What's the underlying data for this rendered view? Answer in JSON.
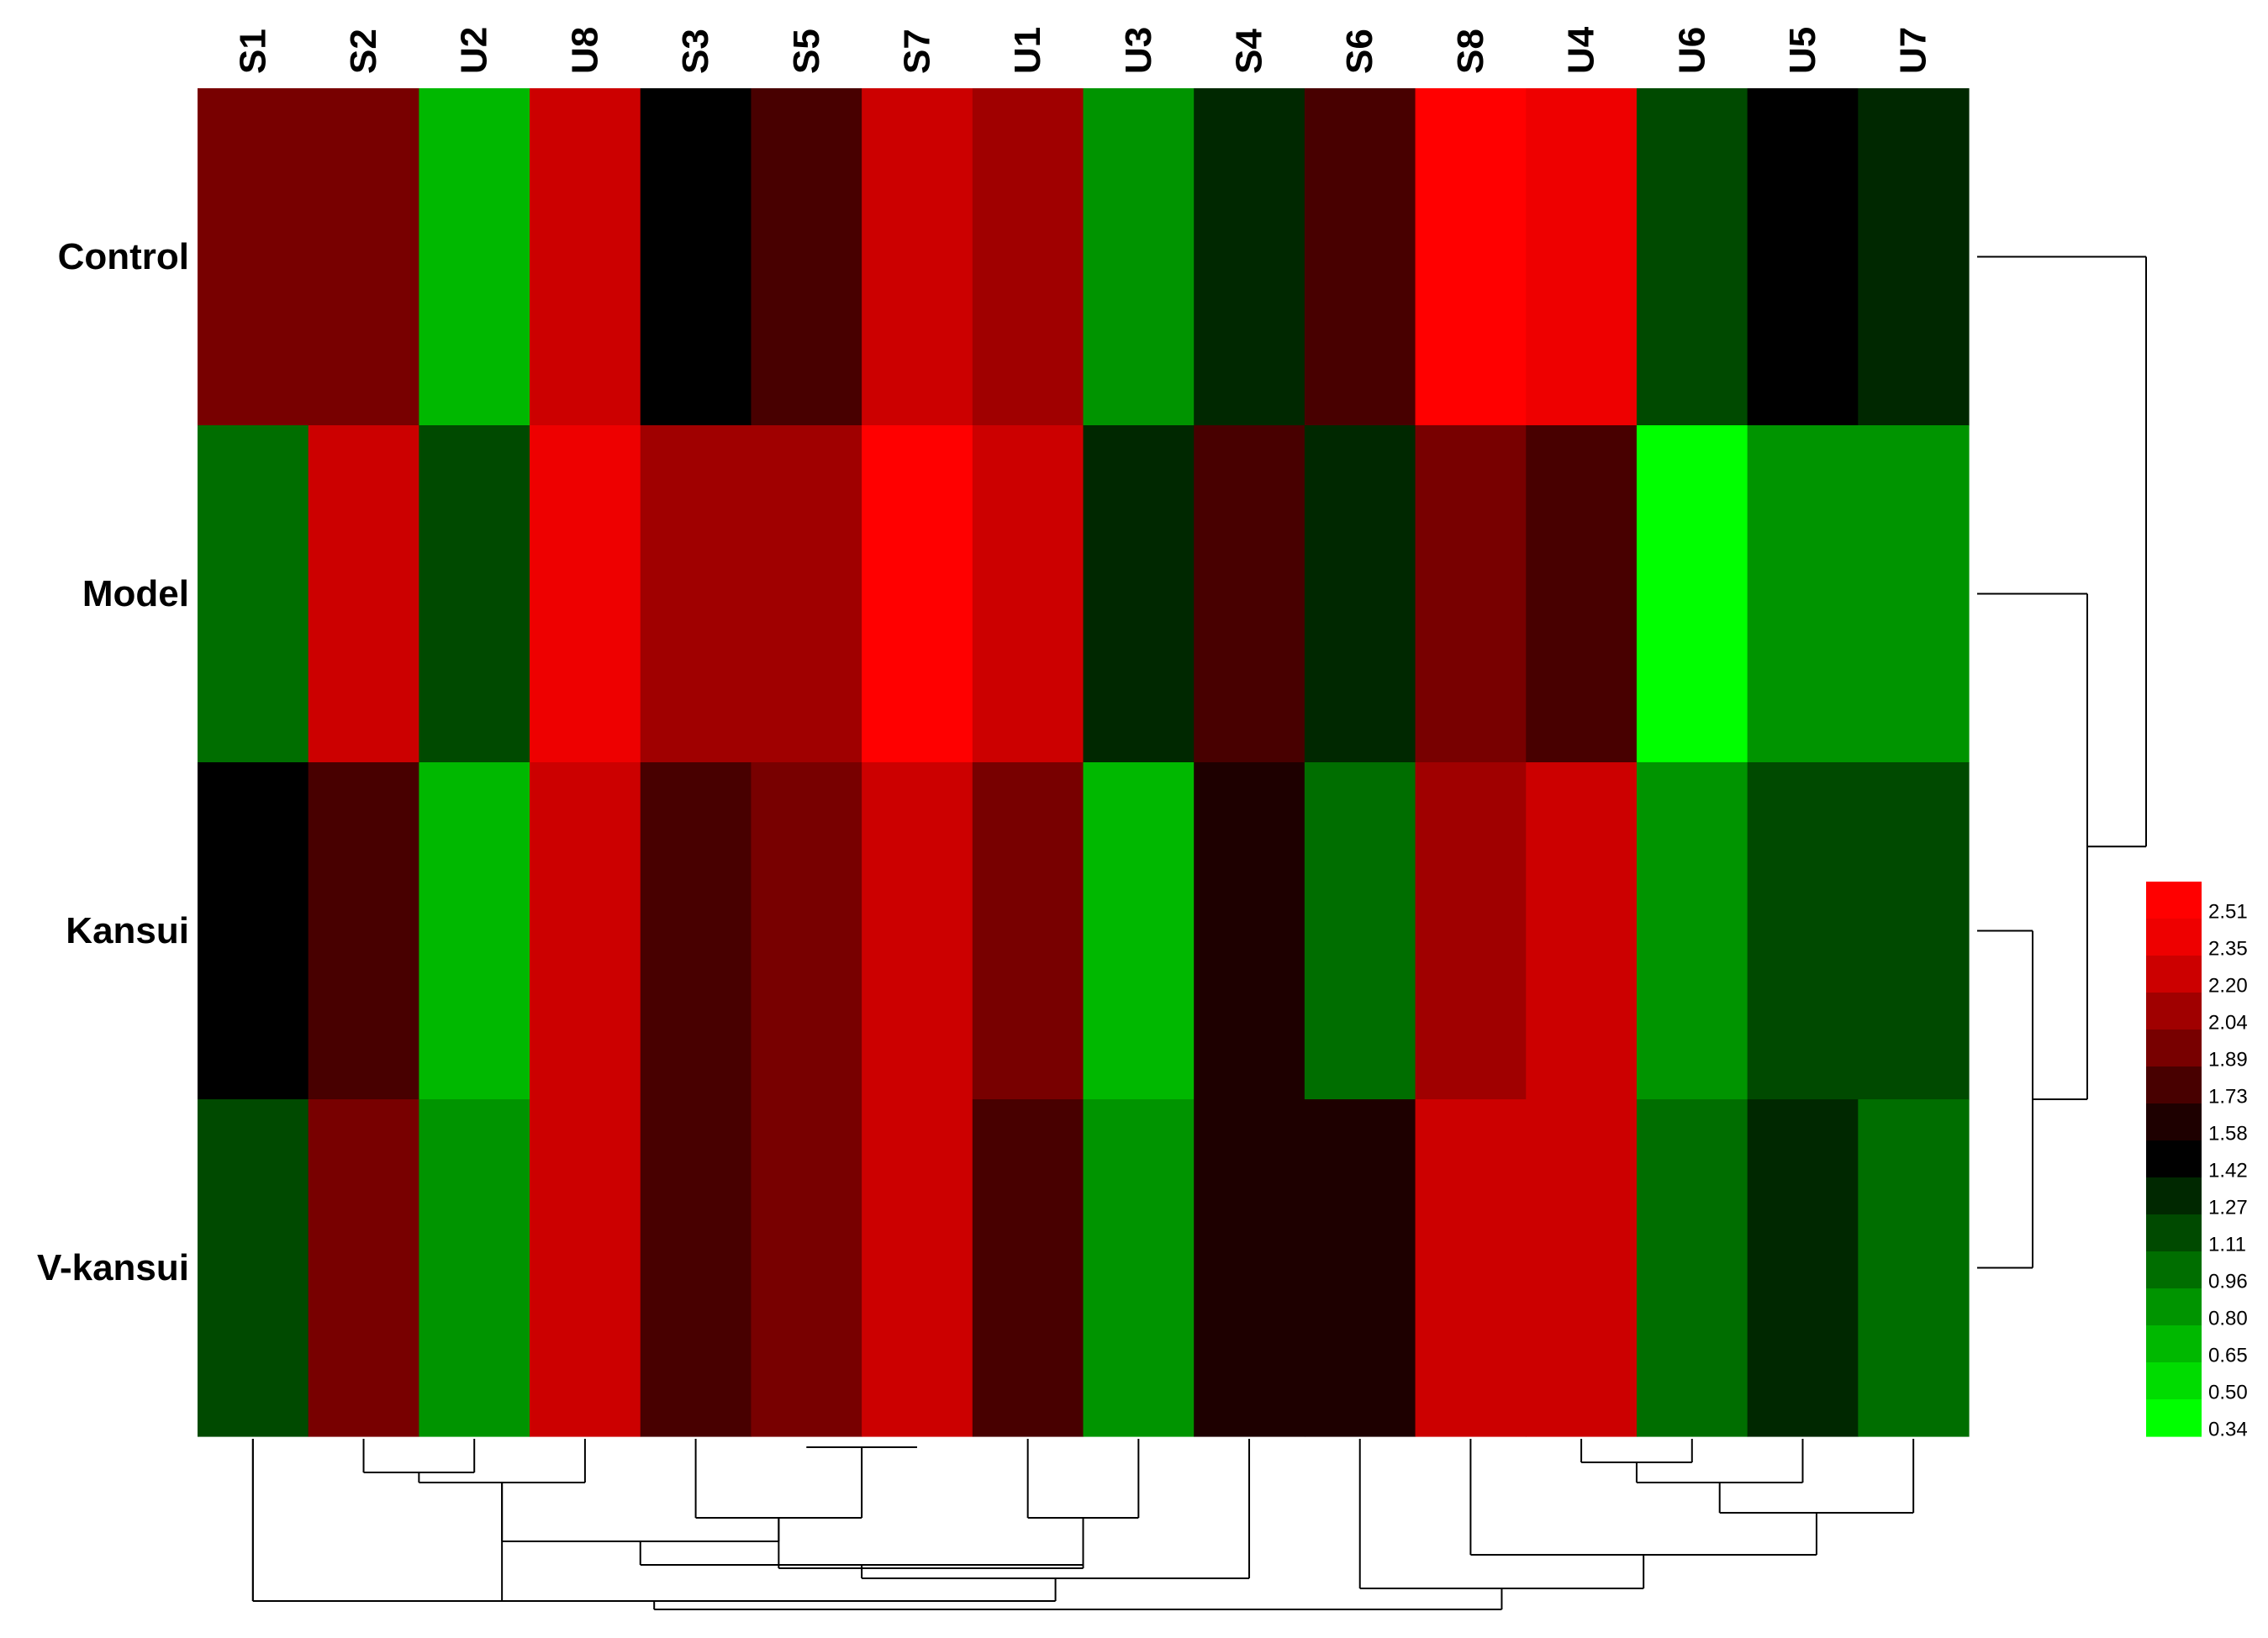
{
  "chart_data": {
    "type": "heatmap",
    "title": "",
    "rows": [
      "Control",
      "Model",
      "Kansui",
      "V-kansui"
    ],
    "columns": [
      "S1",
      "S2",
      "U2",
      "U8",
      "S3",
      "S5",
      "S7",
      "U1",
      "U3",
      "S4",
      "S6",
      "S8",
      "U4",
      "U6",
      "U5",
      "U7"
    ],
    "values": [
      [
        1.89,
        1.89,
        0.65,
        2.2,
        1.42,
        1.73,
        2.2,
        2.04,
        0.8,
        1.27,
        1.73,
        2.51,
        2.35,
        1.11,
        1.42,
        1.27
      ],
      [
        0.96,
        2.2,
        1.11,
        2.35,
        2.04,
        2.04,
        2.51,
        2.2,
        1.27,
        1.73,
        1.27,
        1.89,
        1.73,
        0.34,
        0.8,
        0.8
      ],
      [
        1.42,
        1.73,
        0.65,
        2.2,
        1.73,
        1.89,
        2.2,
        1.89,
        0.65,
        1.58,
        0.96,
        2.04,
        2.2,
        0.8,
        1.11,
        1.11
      ],
      [
        1.11,
        1.89,
        0.8,
        2.2,
        1.73,
        1.89,
        2.2,
        1.73,
        0.8,
        1.58,
        1.58,
        2.2,
        2.2,
        0.96,
        1.27,
        0.96
      ]
    ],
    "color_scale": {
      "breaks": [
        2.51,
        2.35,
        2.2,
        2.04,
        1.89,
        1.73,
        1.58,
        1.42,
        1.27,
        1.11,
        0.96,
        0.8,
        0.65,
        0.5,
        0.34
      ],
      "tick_labels": [
        "2.51",
        "2.35",
        "2.20",
        "2.04",
        "1.89",
        "1.73",
        "1.58",
        "1.42",
        "1.27",
        "1.11",
        "0.96",
        "0.80",
        "0.65",
        "0.50",
        "0.34"
      ],
      "colors": [
        "#ff0000",
        "#ee0000",
        "#cc0000",
        "#a00000",
        "#780000",
        "#480000",
        "#1e0000",
        "#000000",
        "#002800",
        "#004a00",
        "#006e00",
        "#009400",
        "#00b800",
        "#00dc00",
        "#00ff00"
      ],
      "legend_position": "right"
    },
    "row_dendrogram": {
      "merges": [
        [
          "Kansui",
          "V-kansui"
        ],
        [
          "Model",
          "Kansui+V-kansui"
        ],
        [
          "Control",
          "Model+Kansui+V-kansui"
        ]
      ],
      "heights": [
        0.25,
        0.45,
        0.75
      ]
    },
    "column_dendrogram": {
      "merges": [
        [
          "S2",
          "U2"
        ],
        [
          "S5",
          "S7"
        ],
        [
          "S2+U2",
          "U8"
        ],
        [
          "S3",
          "S5+S7"
        ],
        [
          "U1",
          "U3"
        ],
        [
          "S1",
          "S2+U2+U8"
        ],
        [
          "S3+S5+S7",
          "U1+U3"
        ],
        [
          "S1..U8",
          "S3..U3"
        ],
        [
          "S1..U3",
          "S4"
        ],
        [
          "U4",
          "U6"
        ],
        [
          "U4+U6",
          "U5"
        ],
        [
          "U4+U6+U5",
          "U7"
        ],
        [
          "S8",
          "U4..U7"
        ],
        [
          "S6",
          "S8..U7"
        ],
        [
          "S1..S4",
          "S6..U7"
        ]
      ],
      "heights": [
        0.22,
        0.12,
        0.28,
        0.5,
        0.5,
        0.42,
        0.6,
        0.75,
        0.78,
        0.15,
        0.25,
        0.45,
        0.55,
        0.85,
        0.97
      ]
    }
  }
}
